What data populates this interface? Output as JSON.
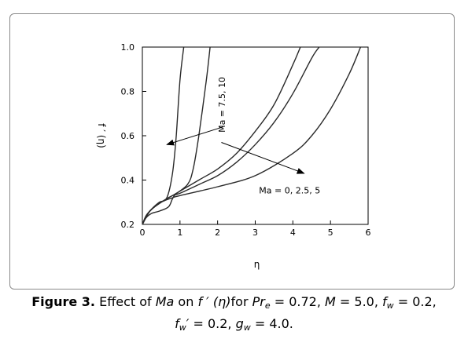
{
  "chart_data": {
    "type": "line",
    "xlabel": "η",
    "ylabel": "f ′ (η)",
    "xlim": [
      0,
      6
    ],
    "ylim": [
      0.2,
      1.0
    ],
    "x_ticks": [
      "0",
      "1",
      "2",
      "3",
      "4",
      "5",
      "6"
    ],
    "y_ticks": [
      "0.2",
      "0.4",
      "0.6",
      "0.8",
      "1.0"
    ],
    "grid": false,
    "series": [
      {
        "x": [
          0,
          0.1,
          0.25,
          0.45,
          0.65,
          0.8,
          0.9,
          1.0,
          1.1
        ],
        "values": [
          0.2,
          0.24,
          0.27,
          0.3,
          0.32,
          0.43,
          0.6,
          0.85,
          1.0
        ]
      },
      {
        "x": [
          0,
          0.1,
          0.25,
          0.45,
          0.7,
          0.85,
          1.2,
          1.35,
          1.5,
          1.7,
          1.8
        ],
        "values": [
          0.2,
          0.23,
          0.25,
          0.26,
          0.28,
          0.33,
          0.38,
          0.45,
          0.6,
          0.85,
          1.0
        ]
      },
      {
        "x": [
          0,
          0.2,
          0.5,
          0.8,
          1.0,
          1.5,
          2.0,
          2.5,
          3.0,
          3.5,
          4.0,
          4.2
        ],
        "values": [
          0.2,
          0.26,
          0.3,
          0.33,
          0.35,
          0.4,
          0.45,
          0.52,
          0.62,
          0.74,
          0.92,
          1.0
        ]
      },
      {
        "x": [
          0,
          0.2,
          0.5,
          0.8,
          1.0,
          1.5,
          2.0,
          2.5,
          3.0,
          3.5,
          4.0,
          4.5,
          4.7
        ],
        "values": [
          0.2,
          0.26,
          0.3,
          0.33,
          0.34,
          0.38,
          0.42,
          0.48,
          0.56,
          0.66,
          0.79,
          0.95,
          1.0
        ]
      },
      {
        "x": [
          0,
          0.2,
          0.5,
          0.8,
          1.0,
          2.0,
          3.0,
          4.0,
          4.5,
          5.0,
          5.5,
          5.8
        ],
        "values": [
          0.2,
          0.26,
          0.3,
          0.32,
          0.33,
          0.37,
          0.42,
          0.52,
          0.6,
          0.72,
          0.88,
          1.0
        ]
      }
    ],
    "annotations": [
      {
        "text": "Ma = 7.5, 10",
        "at": [
          2.2,
          0.74
        ],
        "arrow_from": [
          2.15,
          0.64
        ],
        "arrow_to": [
          0.65,
          0.56
        ]
      },
      {
        "text": "Ma = 0, 2.5, 5",
        "at": [
          3.1,
          0.34
        ],
        "arrow_from": [
          2.1,
          0.57
        ],
        "arrow_to": [
          4.3,
          0.43
        ]
      }
    ]
  },
  "caption": {
    "figure_label": "Figure 3.",
    "line1": [
      "Effect of ",
      "Ma",
      " on ",
      "f ′ (η)",
      "for ",
      "Pr",
      "e",
      " = 0.72, ",
      "M",
      " = 5.0, ",
      "f",
      "w",
      " = 0.2,"
    ],
    "line2": [
      "f",
      "w",
      "′",
      " = 0.2, ",
      "g",
      "w",
      " = 4.0."
    ]
  }
}
